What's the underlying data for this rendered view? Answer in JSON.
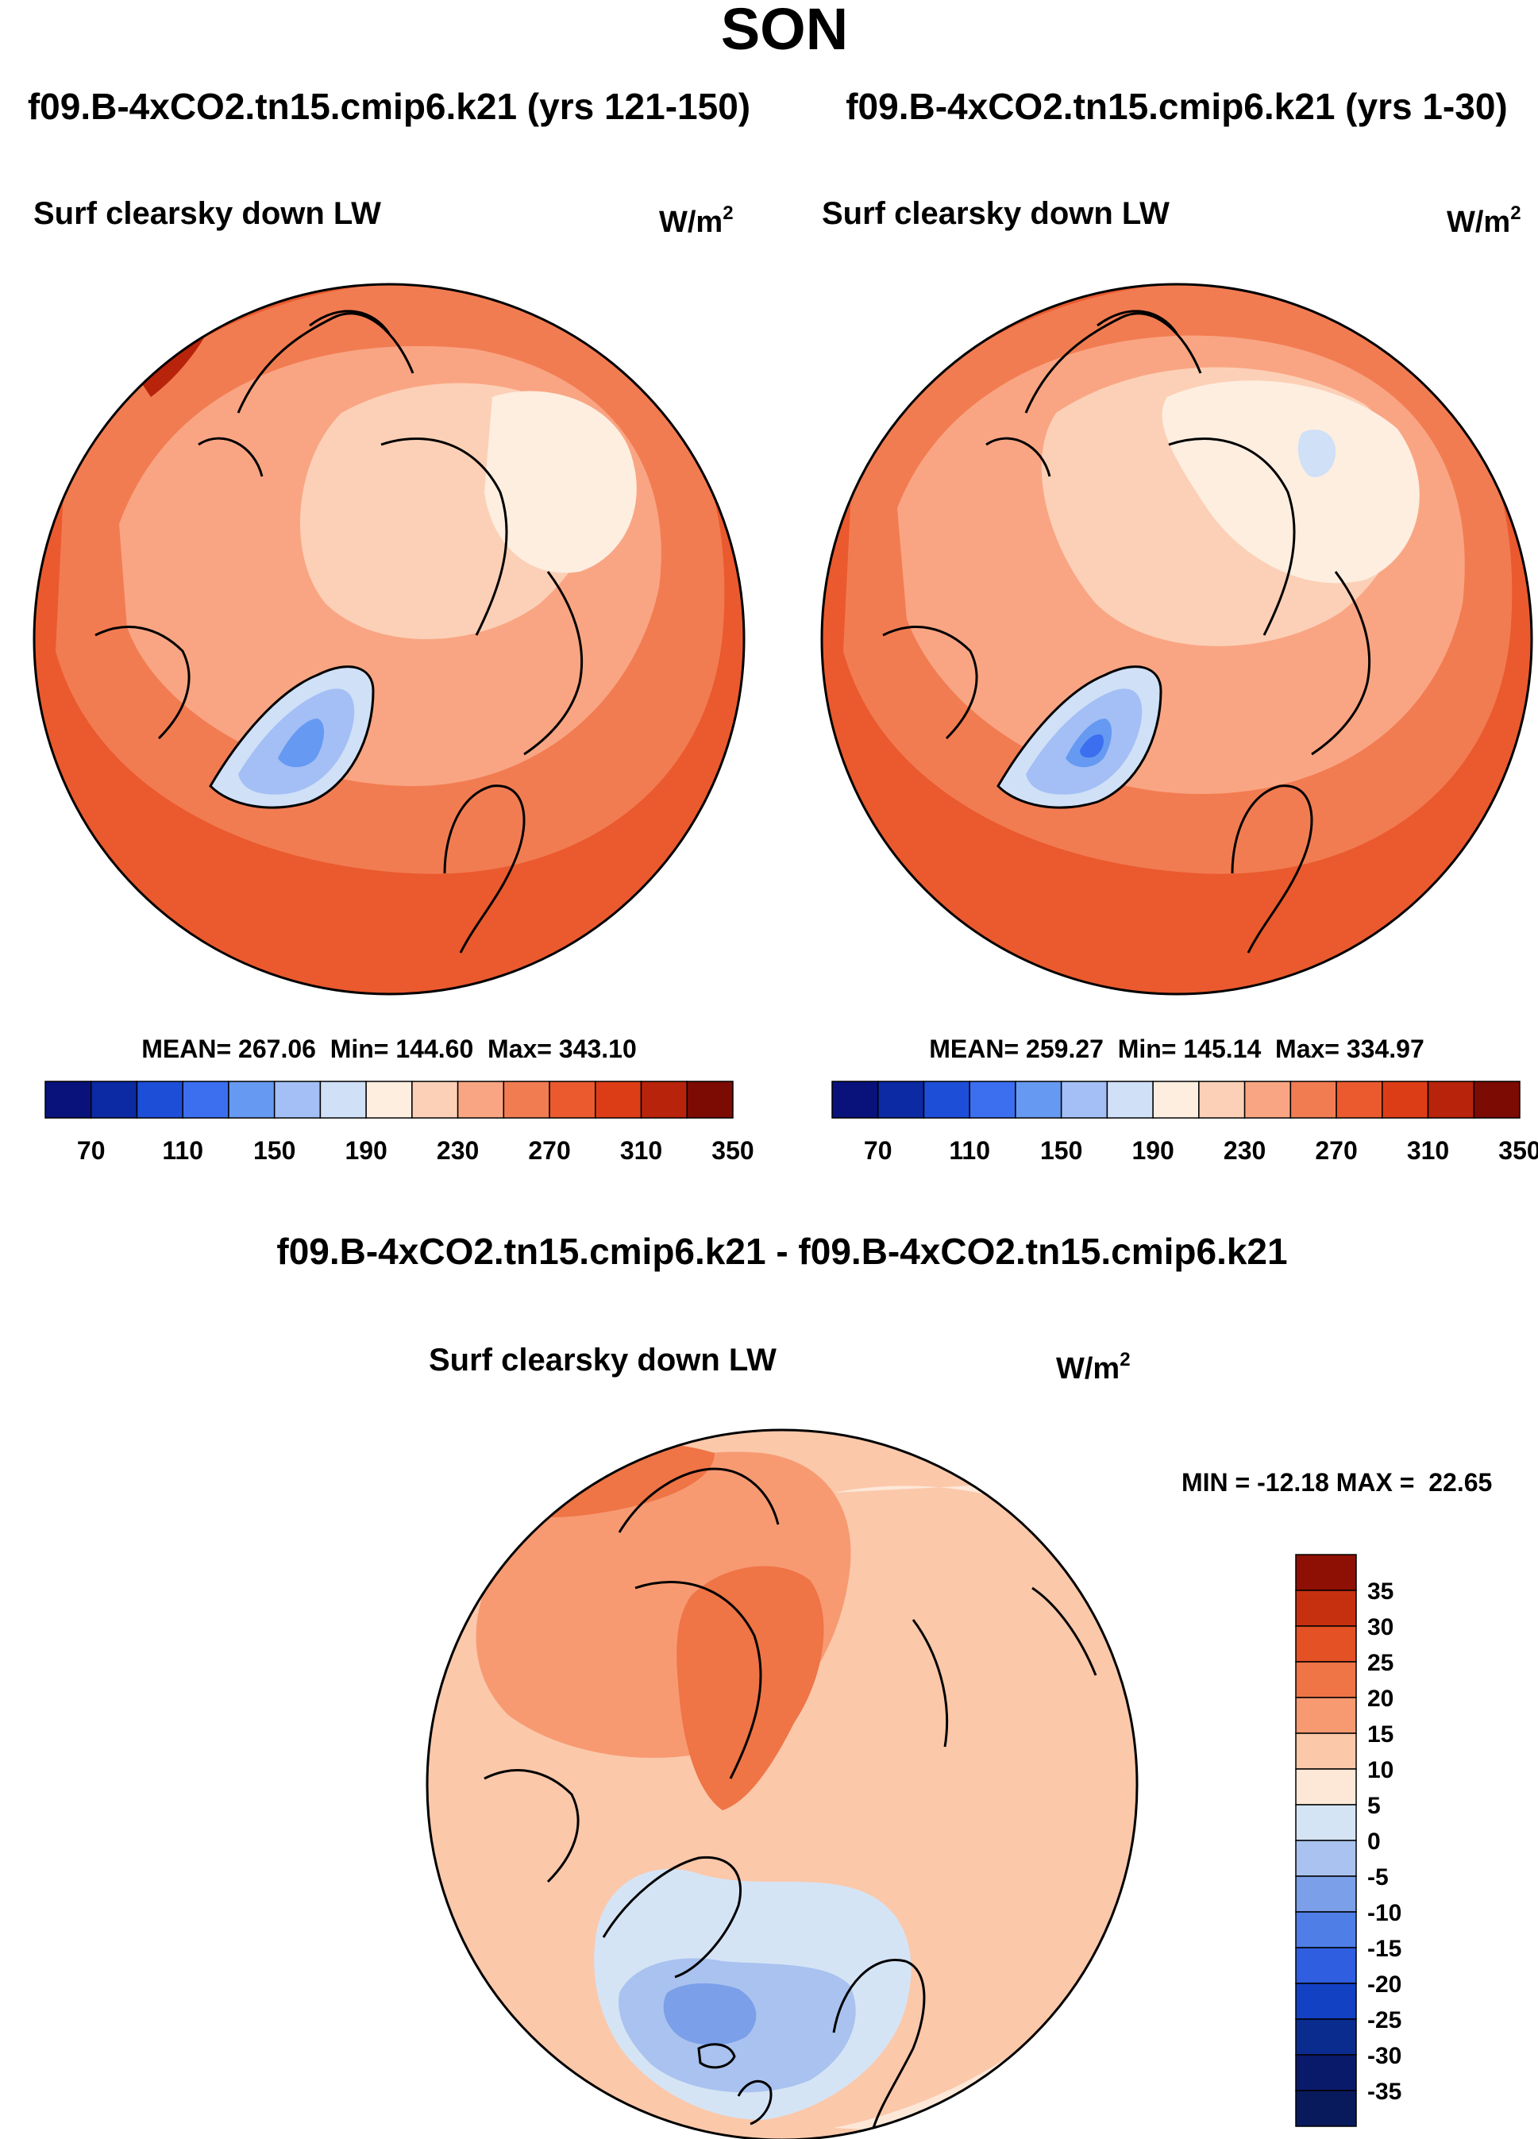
{
  "chart_data": {
    "type": "contour-map",
    "figure_title": "SON",
    "colors": {
      "abs_palette": [
        "#08127a",
        "#0b2aa3",
        "#1d4ed8",
        "#3b6ff0",
        "#6699f2",
        "#a3bff5",
        "#cfe0f7",
        "#fdeee0",
        "#fcd0b6",
        "#f9a583",
        "#f27c52",
        "#ea5a2e",
        "#dd3d16",
        "#b8240b",
        "#7c0b04"
      ],
      "diff_palette": [
        "#0a1a6a",
        "#0b2c8f",
        "#1341c4",
        "#2f5fe0",
        "#4f7ee6",
        "#7b9fe8",
        "#a9c2ef",
        "#d5e4f5",
        "#fde8d8",
        "#fbc8aa",
        "#f79a72",
        "#ef7446",
        "#e35124",
        "#c6300f",
        "#8e0f03"
      ],
      "coast": "#000000"
    },
    "panels": [
      {
        "name": "panel-left",
        "header": "f09.B-4xCO2.tn15.cmip6.k21 (yrs 121-150)",
        "variable": "Surf clearsky down LW",
        "units_base": "W/m",
        "units_exp": "2",
        "stats": "MEAN= 267.06  Min= 144.60  Max= 343.10",
        "mean": 267.06,
        "min": 144.6,
        "max": 343.1,
        "colorbar_levels": [
          70,
          90,
          110,
          130,
          150,
          170,
          190,
          210,
          230,
          250,
          270,
          290,
          310,
          330,
          350
        ],
        "colorbar_labels": [
          "70",
          "110",
          "150",
          "190",
          "230",
          "270",
          "310",
          "350"
        ]
      },
      {
        "name": "panel-right",
        "header": "f09.B-4xCO2.tn15.cmip6.k21 (yrs 1-30)",
        "variable": "Surf clearsky down LW",
        "units_base": "W/m",
        "units_exp": "2",
        "stats": "MEAN= 259.27  Min= 145.14  Max= 334.97",
        "mean": 259.27,
        "min": 145.14,
        "max": 334.97,
        "colorbar_levels": [
          70,
          90,
          110,
          130,
          150,
          170,
          190,
          210,
          230,
          250,
          270,
          290,
          310,
          330,
          350
        ],
        "colorbar_labels": [
          "70",
          "110",
          "150",
          "190",
          "230",
          "270",
          "310",
          "350"
        ]
      },
      {
        "name": "panel-diff",
        "header": "f09.B-4xCO2.tn15.cmip6.k21 - f09.B-4xCO2.tn15.cmip6.k21",
        "variable": "Surf clearsky down LW",
        "units_base": "W/m",
        "units_exp": "2",
        "stats": "MIN = -12.18 MAX =  22.65",
        "min": -12.18,
        "max": 22.65,
        "colorbar_levels": [
          35,
          30,
          25,
          20,
          15,
          10,
          5,
          0,
          -5,
          -10,
          -15,
          -20,
          -25,
          -30,
          -35
        ],
        "colorbar_labels": [
          "35",
          "30",
          "25",
          "20",
          "15",
          "10",
          "5",
          "0",
          "-5",
          "-10",
          "-15",
          "-20",
          "-25",
          "-30",
          "-35"
        ]
      }
    ]
  }
}
